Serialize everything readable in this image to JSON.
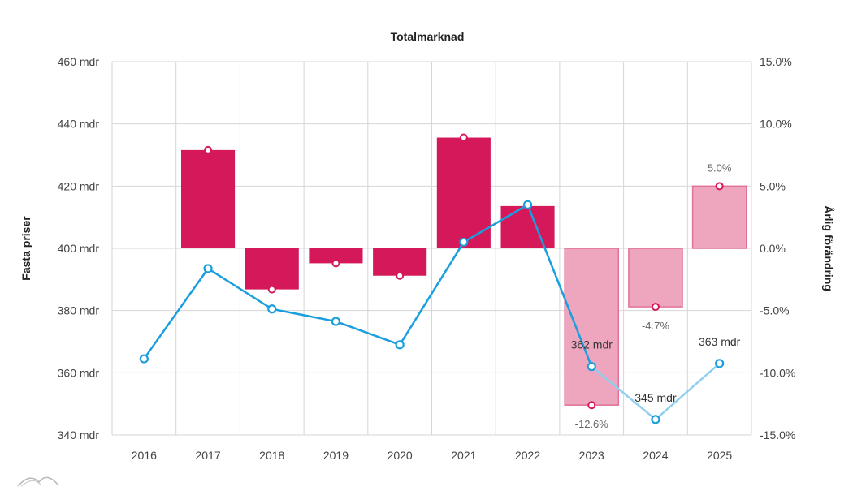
{
  "chart_data": {
    "type": "bar",
    "title": "Totalmarknad",
    "xlabel": "",
    "ylabel_left": "Fasta priser",
    "ylabel_right": "Årlig förändring",
    "categories": [
      "2016",
      "2017",
      "2018",
      "2019",
      "2020",
      "2021",
      "2022",
      "2023",
      "2024",
      "2025"
    ],
    "y_left": {
      "range": [
        340,
        460
      ],
      "ticks": [
        340,
        360,
        380,
        400,
        420,
        440,
        460
      ],
      "tick_labels": [
        "340 mdr",
        "360 mdr",
        "380 mdr",
        "400 mdr",
        "420 mdr",
        "440 mdr",
        "460 mdr"
      ]
    },
    "y_right": {
      "range": [
        -15,
        15
      ],
      "ticks": [
        -15,
        -10,
        -5,
        0,
        5,
        10,
        15
      ],
      "tick_labels": [
        "-15.0%",
        "-10.0%",
        "-5.0%",
        "0.0%",
        "5.0%",
        "10.0%",
        "15.0%"
      ]
    },
    "grid": true,
    "series": [
      {
        "type": "bar",
        "axis": "right",
        "values": [
          null,
          7.9,
          -3.3,
          -1.2,
          -2.2,
          8.9,
          3.4,
          -12.6,
          -4.7,
          5.0
        ],
        "forecast": [
          false,
          false,
          false,
          false,
          false,
          false,
          false,
          true,
          true,
          true
        ],
        "colors": {
          "actual": "#d4185a",
          "forecast": "#eea6bf",
          "forecast_border": "#e1719a"
        },
        "labels": [
          "",
          "",
          "",
          "",
          "",
          "",
          "",
          "-12.6%",
          "-4.7%",
          "5.0%"
        ]
      },
      {
        "type": "line",
        "axis": "left",
        "values": [
          364.5,
          393.5,
          380.5,
          376.5,
          369,
          402,
          414,
          362,
          345,
          363
        ],
        "forecast": [
          false,
          false,
          false,
          false,
          false,
          false,
          false,
          true,
          true,
          true
        ],
        "colors": {
          "actual": "#1a9ede",
          "forecast": "#8fd0ef"
        },
        "labels": [
          "",
          "",
          "",
          "",
          "",
          "",
          "",
          "362 mdr",
          "345 mdr",
          "363 mdr"
        ]
      }
    ]
  }
}
